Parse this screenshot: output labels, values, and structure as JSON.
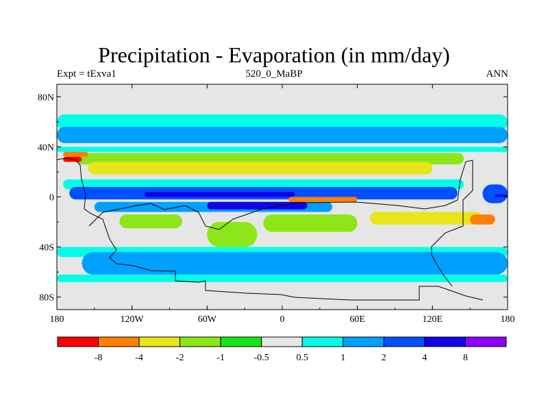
{
  "chart_data": {
    "type": "heatmap",
    "title": "Precipitation - Evaporation (in mm/day)",
    "subtitle_left": "Expt = tExva1",
    "subtitle_center": "520_0_MaBP",
    "subtitle_right": "ANN",
    "x_range": [
      -180,
      180
    ],
    "y_range": [
      -90,
      90
    ],
    "x_ticks": [
      {
        "value": -180,
        "label": "180"
      },
      {
        "value": -120,
        "label": "120W"
      },
      {
        "value": -60,
        "label": "60W"
      },
      {
        "value": 0,
        "label": "0"
      },
      {
        "value": 60,
        "label": "60E"
      },
      {
        "value": 120,
        "label": "120E"
      },
      {
        "value": 180,
        "label": "180"
      }
    ],
    "y_ticks": [
      {
        "value": 80,
        "label": "80N"
      },
      {
        "value": 40,
        "label": "40N"
      },
      {
        "value": 0,
        "label": "0"
      },
      {
        "value": -40,
        "label": "40S"
      },
      {
        "value": -80,
        "label": "80S"
      }
    ],
    "colorbar": {
      "colors": [
        "#ff0000",
        "#ff7f00",
        "#e6e61a",
        "#8ce619",
        "#19e619",
        "#e6e6e6",
        "#00ffe6",
        "#00a0ff",
        "#0050ff",
        "#1400e6",
        "#8c00ff"
      ],
      "labels": [
        "-8",
        "-4",
        "-2",
        "-1",
        "-0.5",
        "0.5",
        "1",
        "2",
        "4",
        "8"
      ]
    },
    "bands": [
      {
        "lon": [
          -180,
          180
        ],
        "lat": [
          53,
          66
        ],
        "class": 6
      },
      {
        "lon": [
          -180,
          180
        ],
        "lat": [
          43,
          56
        ],
        "class": 7
      },
      {
        "lon": [
          -180,
          180
        ],
        "lat": [
          36,
          40
        ],
        "class": 6
      },
      {
        "lon": [
          -165,
          145
        ],
        "lat": [
          26,
          35
        ],
        "class": 3
      },
      {
        "lon": [
          -155,
          120
        ],
        "lat": [
          18,
          28
        ],
        "class": 2
      },
      {
        "lon": [
          -175,
          145
        ],
        "lat": [
          6,
          14
        ],
        "class": 6
      },
      {
        "lon": [
          -170,
          140
        ],
        "lat": [
          -2,
          8
        ],
        "class": 8
      },
      {
        "lon": [
          -110,
          10
        ],
        "lat": [
          0,
          4
        ],
        "class": 9
      },
      {
        "lon": [
          -150,
          40
        ],
        "lat": [
          -12,
          -4
        ],
        "class": 7
      },
      {
        "lon": [
          -60,
          20
        ],
        "lat": [
          -10,
          -4
        ],
        "class": 9
      },
      {
        "lon": [
          -130,
          -80
        ],
        "lat": [
          -25,
          -14
        ],
        "class": 3
      },
      {
        "lon": [
          -15,
          60
        ],
        "lat": [
          -28,
          -14
        ],
        "class": 3
      },
      {
        "lon": [
          70,
          160
        ],
        "lat": [
          -22,
          -12
        ],
        "class": 2
      },
      {
        "lon": [
          150,
          170
        ],
        "lat": [
          -22,
          -14
        ],
        "class": 1
      },
      {
        "lon": [
          -60,
          -20
        ],
        "lat": [
          -40,
          -20
        ],
        "class": 3
      },
      {
        "lon": [
          -180,
          180
        ],
        "lat": [
          -48,
          -40
        ],
        "class": 6
      },
      {
        "lon": [
          -160,
          180
        ],
        "lat": [
          -62,
          -44
        ],
        "class": 7
      },
      {
        "lon": [
          -180,
          180
        ],
        "lat": [
          -68,
          -62
        ],
        "class": 6
      },
      {
        "lon": [
          -175,
          -155
        ],
        "lat": [
          32,
          36
        ],
        "class": 1
      },
      {
        "lon": [
          -175,
          -160
        ],
        "lat": [
          28,
          32
        ],
        "class": 0
      },
      {
        "lon": [
          160,
          180
        ],
        "lat": [
          -5,
          10
        ],
        "class": 8
      },
      {
        "lon": [
          5,
          60
        ],
        "lat": [
          -4,
          0
        ],
        "class": 1
      },
      {
        "lon": [
          170,
          180
        ],
        "lat": [
          0,
          2
        ],
        "class": 9
      }
    ]
  }
}
